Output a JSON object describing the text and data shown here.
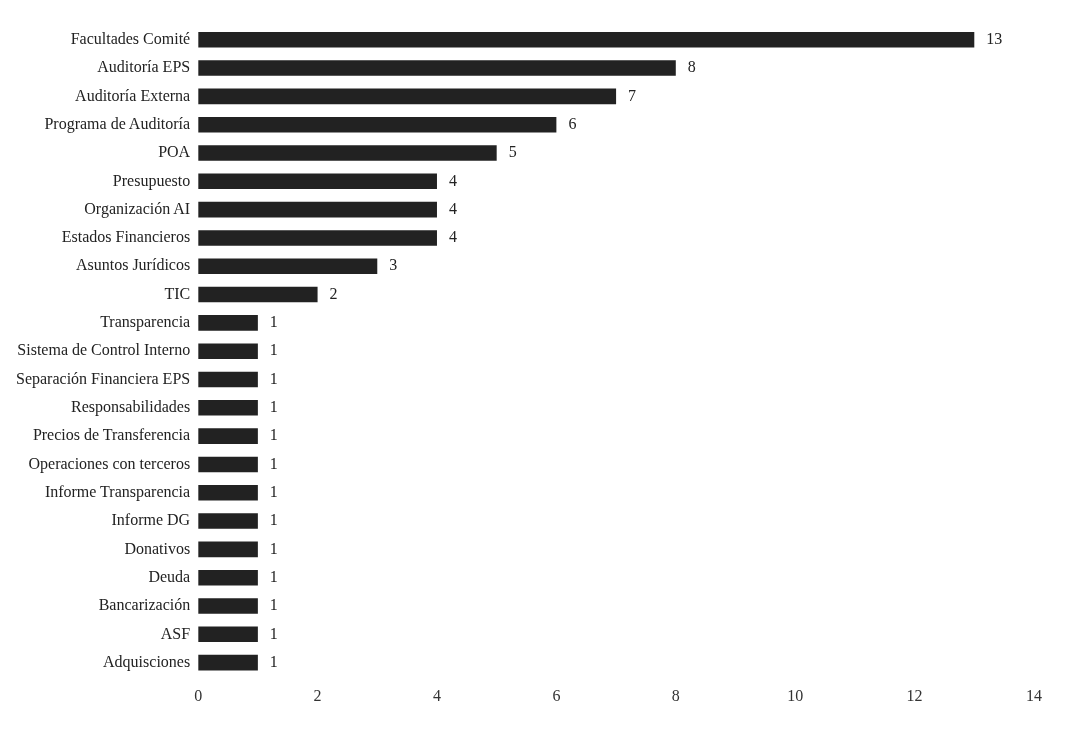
{
  "chart_data": {
    "type": "bar",
    "orientation": "horizontal",
    "categories": [
      "Facultades Comité",
      "Auditoría EPS",
      "Auditoría Externa",
      "Programa de Auditoría",
      "POA",
      "Presupuesto",
      "Organización AI",
      "Estados Financieros",
      "Asuntos Jurídicos",
      "TIC",
      "Transparencia",
      "Sistema de Control Interno",
      "Separación Financiera EPS",
      "Responsabilidades",
      "Precios de Transferencia",
      "Operaciones con terceros",
      "Informe Transparencia",
      "Informe DG",
      "Donativos",
      "Deuda",
      "Bancarización",
      "ASF",
      "Adquisciones"
    ],
    "values": [
      13,
      8,
      7,
      6,
      5,
      4,
      4,
      4,
      3,
      2,
      1,
      1,
      1,
      1,
      1,
      1,
      1,
      1,
      1,
      1,
      1,
      1,
      1
    ],
    "color": "#222222",
    "xlim": [
      0,
      14
    ],
    "xticks": [
      0,
      2,
      4,
      6,
      8,
      10,
      12,
      14
    ],
    "data_labels": true,
    "grid": false,
    "legend": false
  }
}
